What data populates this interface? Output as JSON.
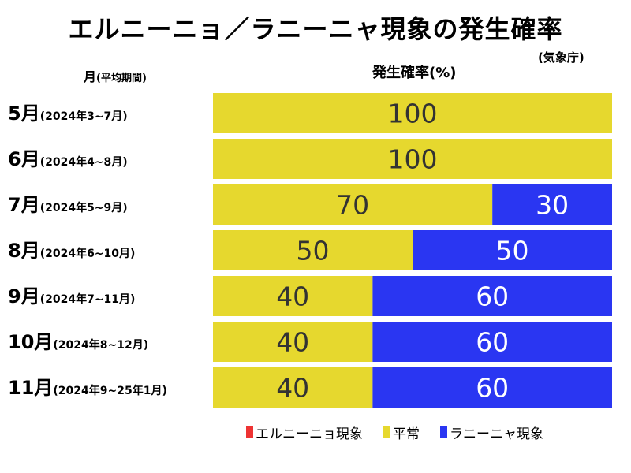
{
  "title": "エルニーニョ／ラニーニャ現象の発生確率",
  "source": "(気象庁)",
  "month_header": {
    "main": "月",
    "sub": "(平均期間)"
  },
  "value_header": "発生確率(%)",
  "colors": {
    "el_nino": "#ee3333",
    "normal": "#e6d82e",
    "la_nina": "#2a36f2"
  },
  "legend": [
    {
      "label": "エルニーニョ現象",
      "color": "#ee3333"
    },
    {
      "label": "平常",
      "color": "#e6d82e"
    },
    {
      "label": "ラニーニャ現象",
      "color": "#2a36f2"
    }
  ],
  "chart_data": {
    "type": "bar",
    "orientation": "horizontal",
    "stacked": true,
    "categories": [
      {
        "month": "5月",
        "period": "(2024年3~7月)"
      },
      {
        "month": "6月",
        "period": "(2024年4~8月)"
      },
      {
        "month": "7月",
        "period": "(2024年5~9月)"
      },
      {
        "month": "8月",
        "period": "(2024年6~10月)"
      },
      {
        "month": "9月",
        "period": "(2024年7~11月)"
      },
      {
        "month": "10月",
        "period": "(2024年8~12月)"
      },
      {
        "month": "11月",
        "period": "(2024年9~25年1月)"
      }
    ],
    "series": [
      {
        "name": "エルニーニョ現象",
        "color": "#ee3333",
        "values": [
          0,
          0,
          0,
          0,
          0,
          0,
          0
        ]
      },
      {
        "name": "平常",
        "color": "#e6d82e",
        "values": [
          100,
          100,
          70,
          50,
          40,
          40,
          40
        ]
      },
      {
        "name": "ラニーニャ現象",
        "color": "#2a36f2",
        "values": [
          0,
          0,
          30,
          50,
          60,
          60,
          60
        ]
      }
    ],
    "xlim": [
      0,
      100
    ],
    "unit": "%",
    "legend_position": "bottom"
  }
}
